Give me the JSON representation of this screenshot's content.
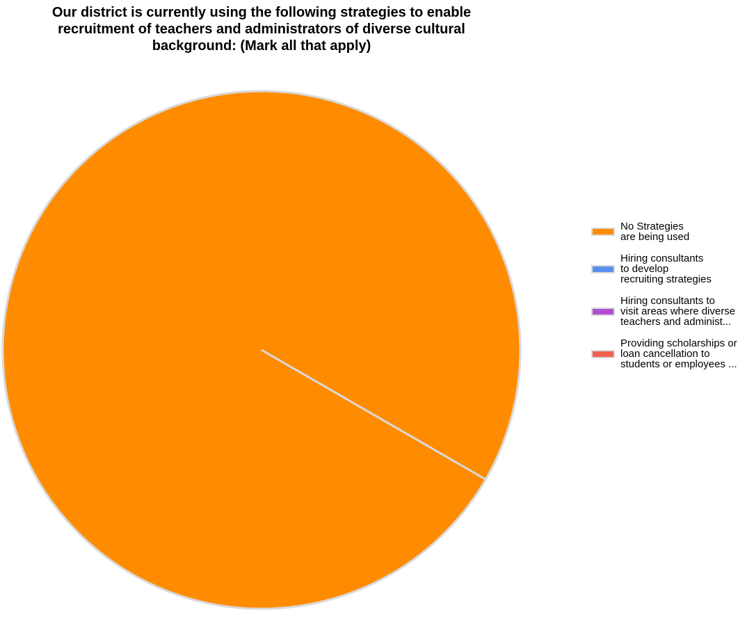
{
  "chart_data": {
    "type": "pie",
    "title": "Our district is currently using the following strategies to enable\nrecruitment of teachers and administrators of diverse cultural\nbackground:  (Mark all that apply)",
    "legend_position": "right",
    "series": [
      {
        "name": "No Strategies\nare being used",
        "value": 100,
        "color": "#FF8C00"
      },
      {
        "name": "Hiring consultants\nto develop\nrecruiting strategies",
        "value": 0,
        "color": "#5B8FEE"
      },
      {
        "name": "Hiring consultants to\nvisit areas where diverse\nteachers and administ...",
        "value": 0,
        "color": "#B14FD1"
      },
      {
        "name": "Providing scholarships or\nloan cancellation to\nstudents or employees ...",
        "value": 0,
        "color": "#F2604F"
      }
    ],
    "start_angle_deg": 30,
    "slice_border_color": "#d9d9d9"
  }
}
